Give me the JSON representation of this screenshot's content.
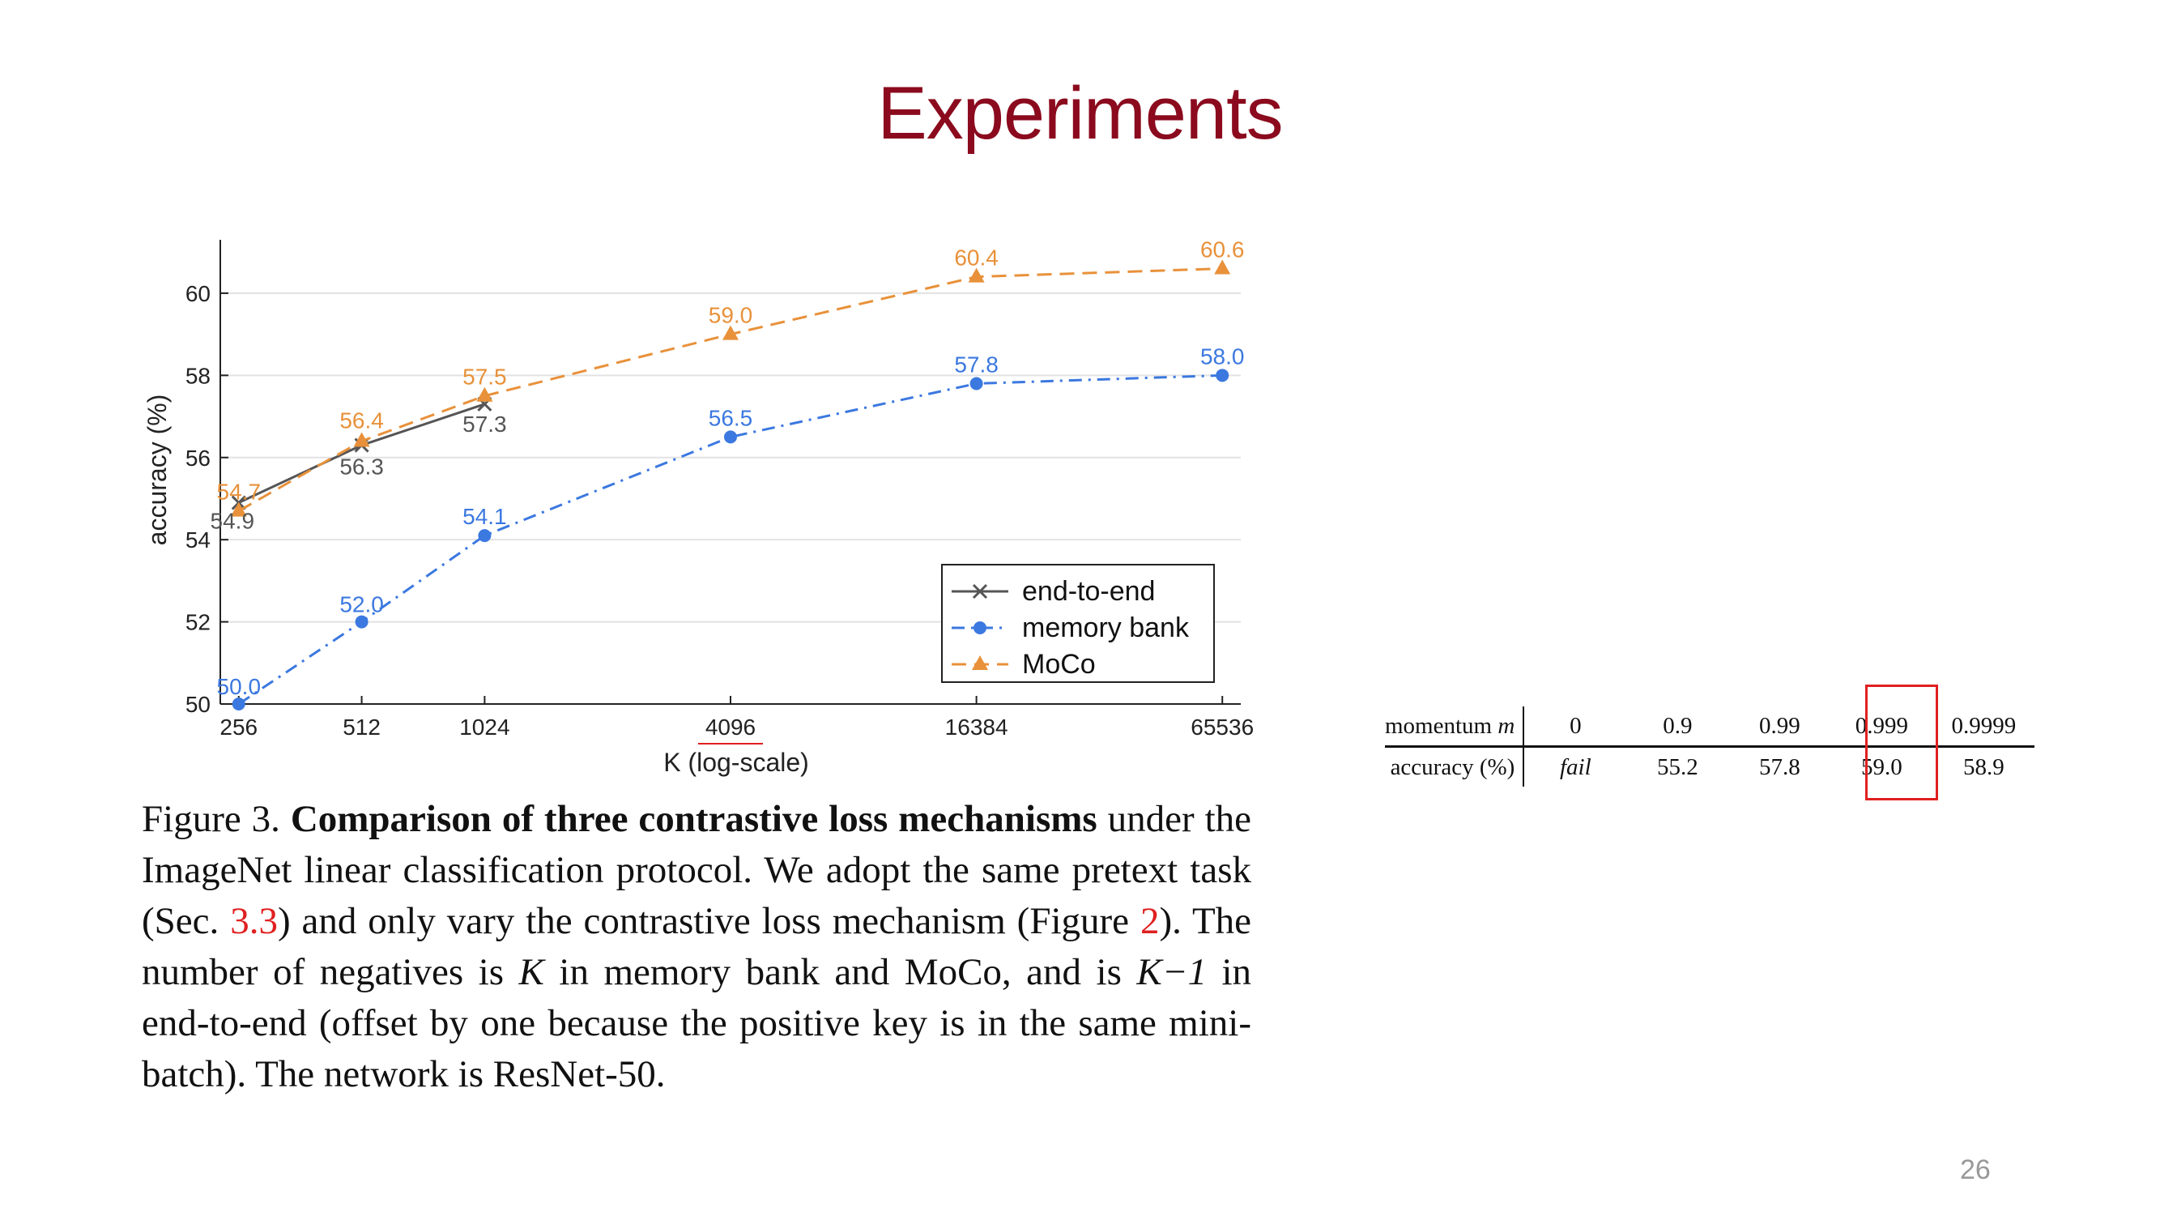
{
  "slide": {
    "title": "Experiments",
    "page_number": "26"
  },
  "chart_data": {
    "type": "line",
    "xscale": "log",
    "xlabel": "K (log-scale)",
    "ylabel": "accuracy (%)",
    "x": [
      256,
      512,
      1024,
      4096,
      16384,
      65536
    ],
    "x_tick_labels": [
      "256",
      "512",
      "1024",
      "4096",
      "16384",
      "65536"
    ],
    "y_ticks": [
      50,
      52,
      54,
      56,
      58,
      60
    ],
    "ylim": [
      50,
      61.3
    ],
    "grid": "horizontal",
    "legend_position": "lower-right",
    "series": [
      {
        "name": "end-to-end",
        "color": "#555555",
        "marker": "x",
        "dash": "solid",
        "x": [
          256,
          512,
          1024
        ],
        "values": [
          54.9,
          56.3,
          57.3
        ],
        "labels": [
          "54.9",
          "56.3",
          "57.3"
        ]
      },
      {
        "name": "memory bank",
        "color": "#3b78e0",
        "marker": "circle",
        "dash": "dashdot",
        "x": [
          256,
          512,
          1024,
          4096,
          16384,
          65536
        ],
        "values": [
          50.0,
          52.0,
          54.1,
          56.5,
          57.8,
          58.0
        ],
        "labels": [
          "50.0",
          "52.0",
          "54.1",
          "56.5",
          "57.8",
          "58.0"
        ]
      },
      {
        "name": "MoCo",
        "color": "#e8913a",
        "marker": "triangle",
        "dash": "dashed",
        "x": [
          256,
          512,
          1024,
          4096,
          16384,
          65536
        ],
        "values": [
          54.7,
          56.4,
          57.5,
          59.0,
          60.4,
          60.6
        ],
        "labels": [
          "54.7",
          "56.4",
          "57.5",
          "59.0",
          "60.4",
          "60.6"
        ]
      }
    ]
  },
  "caption": {
    "fig_label": "Figure 3.",
    "bold_title": "Comparison of three contrastive loss mechanisms",
    "text_1": "under the ImageNet linear classification protocol. We adopt the same pretext task (Sec.",
    "ref_1": "3.3",
    "text_2": ") and only vary the contrastive loss mechanism (Figure",
    "ref_2": "2",
    "text_3": "). The number of negatives is",
    "var_k": "K",
    "text_4": "in memory bank and MoCo, and is",
    "var_k_minus_1": "K−1",
    "text_5": "in end-to-end (offset by one because the positive key is in the same mini-batch). The network is ResNet-50."
  },
  "momentum_table": {
    "row1_label": "momentum m",
    "row2_label": "accuracy (%)",
    "momentum": [
      "0",
      "0.9",
      "0.99",
      "0.999",
      "0.9999"
    ],
    "accuracy": [
      "fail",
      "55.2",
      "57.8",
      "59.0",
      "58.9"
    ],
    "highlight_column": "0.999",
    "highlight_color": "#e02020"
  },
  "colors": {
    "title": "#8b0a1e",
    "reference": "#e02020"
  }
}
